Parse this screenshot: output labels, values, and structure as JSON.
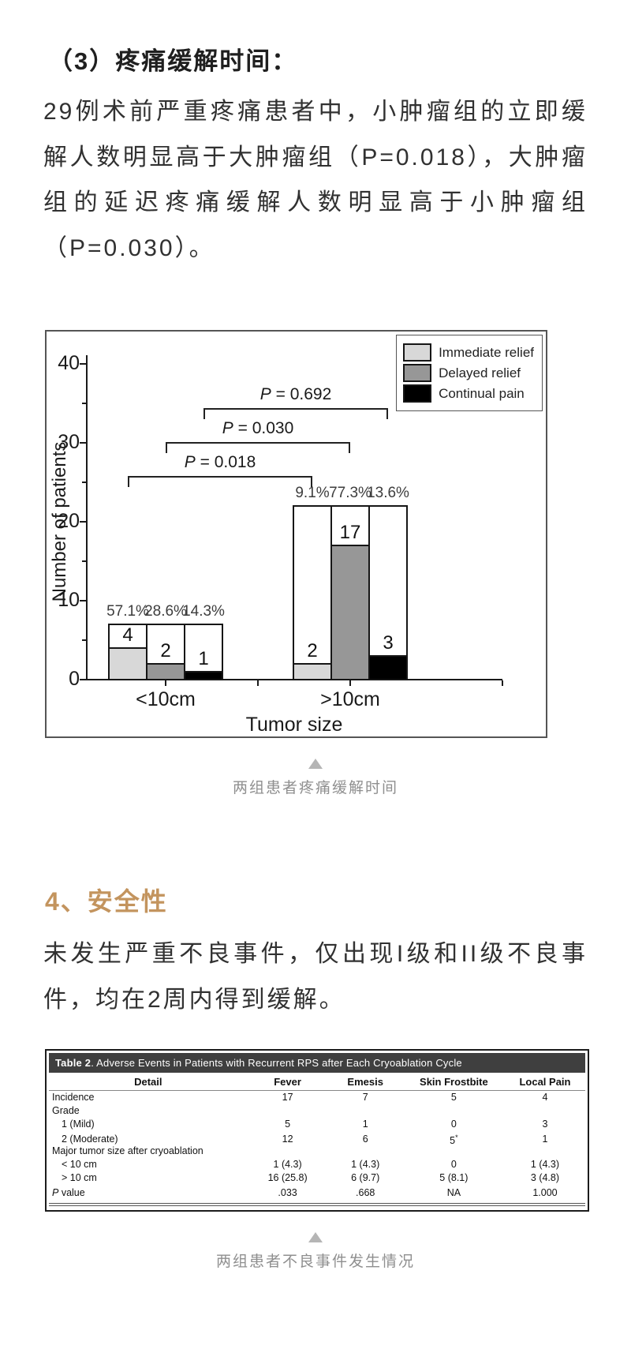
{
  "sections": {
    "pain_relief": {
      "heading": "（3）疼痛缓解时间：",
      "body": "29例术前严重疼痛患者中，小肿瘤组的立即缓解人数明显高于大肿瘤组（P=0.018），大肿瘤组的延迟疼痛缓解人数明显高于小肿瘤组（P=0.030）。"
    },
    "safety": {
      "heading": "4、安全性",
      "body": "未发生严重不良事件，仅出现I级和II级不良事件，均在2周内得到缓解。"
    }
  },
  "figure1": {
    "caption": "两组患者疼痛缓解时间"
  },
  "figure2": {
    "caption": "两组患者不良事件发生情况"
  },
  "chart_data": {
    "type": "bar",
    "title": "",
    "xlabel": "Tumor size",
    "ylabel": "Number of patients",
    "ylim": [
      0,
      40
    ],
    "yticks": [
      0,
      10,
      20,
      30,
      40
    ],
    "yticks_minor": [
      5,
      15,
      25,
      35
    ],
    "grid": false,
    "legend_position": "top-right",
    "categories": [
      "<10cm",
      ">10cm"
    ],
    "group_totals": [
      7,
      22
    ],
    "series": [
      {
        "name": "Immediate relief",
        "color": "#d8d8d8",
        "values": [
          4,
          2
        ],
        "percent": [
          "57.1%",
          "9.1%"
        ]
      },
      {
        "name": "Delayed relief",
        "color": "#979797",
        "values": [
          2,
          17
        ],
        "percent": [
          "28.6%",
          "77.3%"
        ]
      },
      {
        "name": "Continual pain",
        "color": "#000000",
        "values": [
          1,
          3
        ],
        "percent": [
          "14.3%",
          "13.6%"
        ]
      }
    ],
    "annotations": [
      {
        "label": "P = 0.018",
        "series": 0
      },
      {
        "label": "P = 0.030",
        "series": 1
      },
      {
        "label": "P = 0.692",
        "series": 2
      }
    ]
  },
  "table2": {
    "title_bold": "Table 2",
    "title_rest": ". Adverse Events in Patients with Recurrent RPS after Each Cryoablation Cycle",
    "columns": [
      "Detail",
      "Fever",
      "Emesis",
      "Skin Frostbite",
      "Local Pain"
    ],
    "rows": [
      {
        "label": "Incidence",
        "values": [
          "17",
          "7",
          "5",
          "4"
        ],
        "indent": false,
        "italic_first": false
      },
      {
        "label": "Grade",
        "values": [
          "",
          "",
          "",
          ""
        ],
        "indent": false,
        "italic_first": false
      },
      {
        "label": "1 (Mild)",
        "values": [
          "5",
          "1",
          "0",
          "3"
        ],
        "indent": true,
        "italic_first": false
      },
      {
        "label": "2 (Moderate)",
        "values": [
          "12",
          "6",
          "5*",
          "1"
        ],
        "indent": true,
        "italic_first": false
      },
      {
        "label": "Major tumor size after cryoablation",
        "values": [
          "",
          "",
          "",
          ""
        ],
        "indent": false,
        "italic_first": false
      },
      {
        "label": "< 10 cm",
        "values": [
          "1 (4.3)",
          "1 (4.3)",
          "0",
          "1 (4.3)"
        ],
        "indent": true,
        "italic_first": false
      },
      {
        "label": "> 10 cm",
        "values": [
          "16 (25.8)",
          "6 (9.7)",
          "5 (8.1)",
          "3 (4.8)"
        ],
        "indent": true,
        "italic_first": false
      },
      {
        "label": "P value",
        "values": [
          ".033",
          ".668",
          "NA",
          "1.000"
        ],
        "indent": false,
        "italic_first": true
      }
    ]
  }
}
